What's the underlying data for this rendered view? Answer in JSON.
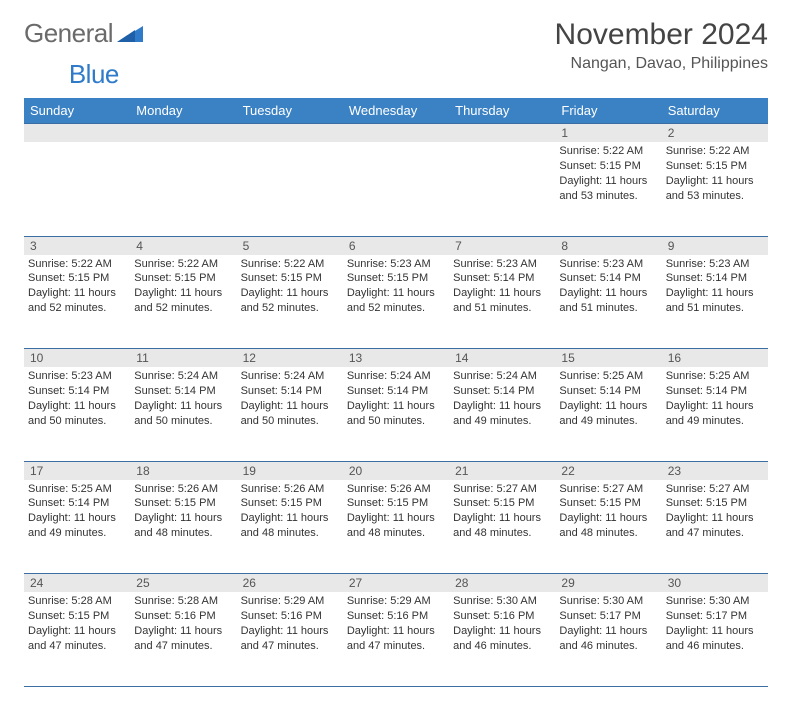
{
  "brand": {
    "part1": "General",
    "part2": "Blue"
  },
  "title": "November 2024",
  "location": "Nangan, Davao, Philippines",
  "weekdays": [
    "Sunday",
    "Monday",
    "Tuesday",
    "Wednesday",
    "Thursday",
    "Friday",
    "Saturday"
  ],
  "colors": {
    "header_bg": "#3b82c4",
    "header_text": "#ffffff",
    "daynum_bg": "#e8e8e8",
    "rule": "#3b6fa3",
    "logo_text": "#6a6a6a",
    "logo_accent": "#2f7bc9"
  },
  "weeks": [
    [
      null,
      null,
      null,
      null,
      null,
      {
        "n": "1",
        "sr": "Sunrise: 5:22 AM",
        "ss": "Sunset: 5:15 PM",
        "dl": "Daylight: 11 hours and 53 minutes."
      },
      {
        "n": "2",
        "sr": "Sunrise: 5:22 AM",
        "ss": "Sunset: 5:15 PM",
        "dl": "Daylight: 11 hours and 53 minutes."
      }
    ],
    [
      {
        "n": "3",
        "sr": "Sunrise: 5:22 AM",
        "ss": "Sunset: 5:15 PM",
        "dl": "Daylight: 11 hours and 52 minutes."
      },
      {
        "n": "4",
        "sr": "Sunrise: 5:22 AM",
        "ss": "Sunset: 5:15 PM",
        "dl": "Daylight: 11 hours and 52 minutes."
      },
      {
        "n": "5",
        "sr": "Sunrise: 5:22 AM",
        "ss": "Sunset: 5:15 PM",
        "dl": "Daylight: 11 hours and 52 minutes."
      },
      {
        "n": "6",
        "sr": "Sunrise: 5:23 AM",
        "ss": "Sunset: 5:15 PM",
        "dl": "Daylight: 11 hours and 52 minutes."
      },
      {
        "n": "7",
        "sr": "Sunrise: 5:23 AM",
        "ss": "Sunset: 5:14 PM",
        "dl": "Daylight: 11 hours and 51 minutes."
      },
      {
        "n": "8",
        "sr": "Sunrise: 5:23 AM",
        "ss": "Sunset: 5:14 PM",
        "dl": "Daylight: 11 hours and 51 minutes."
      },
      {
        "n": "9",
        "sr": "Sunrise: 5:23 AM",
        "ss": "Sunset: 5:14 PM",
        "dl": "Daylight: 11 hours and 51 minutes."
      }
    ],
    [
      {
        "n": "10",
        "sr": "Sunrise: 5:23 AM",
        "ss": "Sunset: 5:14 PM",
        "dl": "Daylight: 11 hours and 50 minutes."
      },
      {
        "n": "11",
        "sr": "Sunrise: 5:24 AM",
        "ss": "Sunset: 5:14 PM",
        "dl": "Daylight: 11 hours and 50 minutes."
      },
      {
        "n": "12",
        "sr": "Sunrise: 5:24 AM",
        "ss": "Sunset: 5:14 PM",
        "dl": "Daylight: 11 hours and 50 minutes."
      },
      {
        "n": "13",
        "sr": "Sunrise: 5:24 AM",
        "ss": "Sunset: 5:14 PM",
        "dl": "Daylight: 11 hours and 50 minutes."
      },
      {
        "n": "14",
        "sr": "Sunrise: 5:24 AM",
        "ss": "Sunset: 5:14 PM",
        "dl": "Daylight: 11 hours and 49 minutes."
      },
      {
        "n": "15",
        "sr": "Sunrise: 5:25 AM",
        "ss": "Sunset: 5:14 PM",
        "dl": "Daylight: 11 hours and 49 minutes."
      },
      {
        "n": "16",
        "sr": "Sunrise: 5:25 AM",
        "ss": "Sunset: 5:14 PM",
        "dl": "Daylight: 11 hours and 49 minutes."
      }
    ],
    [
      {
        "n": "17",
        "sr": "Sunrise: 5:25 AM",
        "ss": "Sunset: 5:14 PM",
        "dl": "Daylight: 11 hours and 49 minutes."
      },
      {
        "n": "18",
        "sr": "Sunrise: 5:26 AM",
        "ss": "Sunset: 5:15 PM",
        "dl": "Daylight: 11 hours and 48 minutes."
      },
      {
        "n": "19",
        "sr": "Sunrise: 5:26 AM",
        "ss": "Sunset: 5:15 PM",
        "dl": "Daylight: 11 hours and 48 minutes."
      },
      {
        "n": "20",
        "sr": "Sunrise: 5:26 AM",
        "ss": "Sunset: 5:15 PM",
        "dl": "Daylight: 11 hours and 48 minutes."
      },
      {
        "n": "21",
        "sr": "Sunrise: 5:27 AM",
        "ss": "Sunset: 5:15 PM",
        "dl": "Daylight: 11 hours and 48 minutes."
      },
      {
        "n": "22",
        "sr": "Sunrise: 5:27 AM",
        "ss": "Sunset: 5:15 PM",
        "dl": "Daylight: 11 hours and 48 minutes."
      },
      {
        "n": "23",
        "sr": "Sunrise: 5:27 AM",
        "ss": "Sunset: 5:15 PM",
        "dl": "Daylight: 11 hours and 47 minutes."
      }
    ],
    [
      {
        "n": "24",
        "sr": "Sunrise: 5:28 AM",
        "ss": "Sunset: 5:15 PM",
        "dl": "Daylight: 11 hours and 47 minutes."
      },
      {
        "n": "25",
        "sr": "Sunrise: 5:28 AM",
        "ss": "Sunset: 5:16 PM",
        "dl": "Daylight: 11 hours and 47 minutes."
      },
      {
        "n": "26",
        "sr": "Sunrise: 5:29 AM",
        "ss": "Sunset: 5:16 PM",
        "dl": "Daylight: 11 hours and 47 minutes."
      },
      {
        "n": "27",
        "sr": "Sunrise: 5:29 AM",
        "ss": "Sunset: 5:16 PM",
        "dl": "Daylight: 11 hours and 47 minutes."
      },
      {
        "n": "28",
        "sr": "Sunrise: 5:30 AM",
        "ss": "Sunset: 5:16 PM",
        "dl": "Daylight: 11 hours and 46 minutes."
      },
      {
        "n": "29",
        "sr": "Sunrise: 5:30 AM",
        "ss": "Sunset: 5:17 PM",
        "dl": "Daylight: 11 hours and 46 minutes."
      },
      {
        "n": "30",
        "sr": "Sunrise: 5:30 AM",
        "ss": "Sunset: 5:17 PM",
        "dl": "Daylight: 11 hours and 46 minutes."
      }
    ]
  ]
}
